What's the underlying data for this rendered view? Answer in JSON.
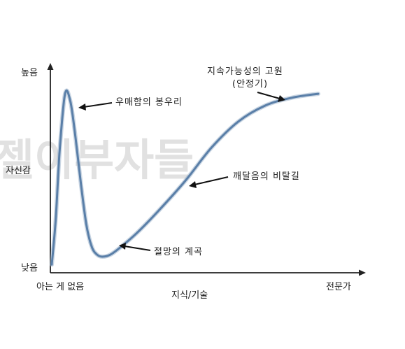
{
  "chart_data": {
    "type": "line",
    "title": "",
    "xlabel": "지식/기술",
    "ylabel": "자신감",
    "x_ticks": [
      "아는 게 없음",
      "전문가"
    ],
    "y_ticks": [
      "높음",
      "낮음"
    ],
    "xlim": [
      0,
      100
    ],
    "ylim": [
      0,
      100
    ],
    "grid": false,
    "legend": "none",
    "series": [
      {
        "color": "#5a7fa8",
        "x": [
          0,
          1.5,
          3,
          5,
          7,
          9,
          11,
          13,
          15,
          17,
          19,
          22,
          26,
          32,
          40,
          50,
          60,
          70,
          80,
          90,
          100
        ],
        "y": [
          2,
          25,
          60,
          88,
          84,
          65,
          42,
          22,
          11,
          7,
          6,
          7,
          11,
          18,
          29,
          44,
          61,
          74,
          82,
          86,
          88
        ]
      }
    ],
    "annotations": [
      {
        "text": "우매함의 봉우리",
        "x": 5,
        "y": 88
      },
      {
        "text": "절망의 계곡",
        "x": 18,
        "y": 6
      },
      {
        "text": "깨달음의 비탈길",
        "x": 50,
        "y": 44
      },
      {
        "text": "지속가능성의 고원",
        "x": 82,
        "y": 83
      },
      {
        "text": "(안정기)",
        "x": 82,
        "y": 83
      }
    ]
  },
  "watermark": "젤이부자들",
  "colors": {
    "axis": "#222222",
    "curve": "#5a7fa8",
    "text": "#1a1a1a"
  }
}
